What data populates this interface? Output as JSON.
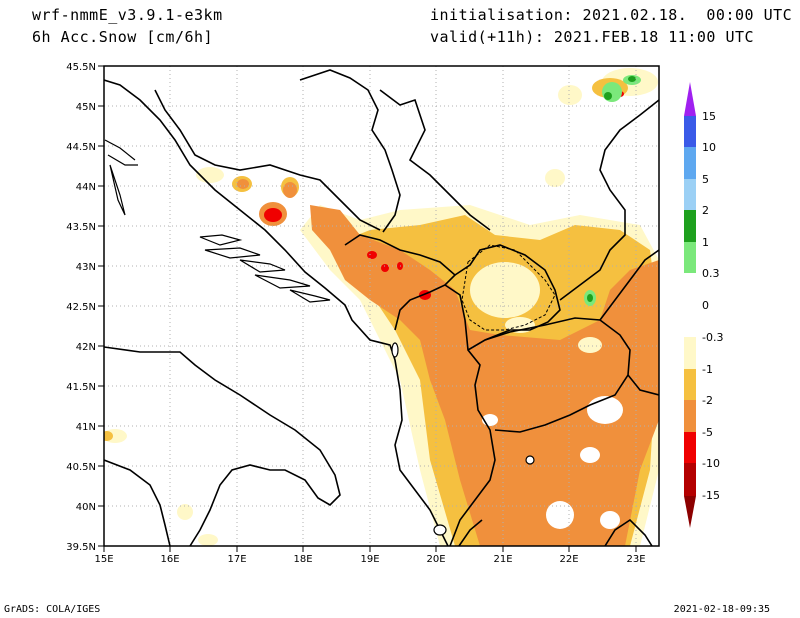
{
  "header": {
    "model": "wrf-nmmE_v3.9.1-e3km",
    "field": "6h Acc.Snow [cm/6h]",
    "init": "initialisation: 2021.02.18.  00:00 UTC",
    "valid": "valid(+11h): 2021.FEB.18 11:00 UTC"
  },
  "footer": {
    "credit": "GrADS: COLA/IGES",
    "timestamp": "2021-02-18-09:35"
  },
  "map": {
    "lat_labels": [
      "45.5N",
      "45N",
      "44.5N",
      "44N",
      "43.5N",
      "43N",
      "42.5N",
      "42N",
      "41.5N",
      "41N",
      "40.5N",
      "40N",
      "39.5N"
    ],
    "lon_labels": [
      "15E",
      "16E",
      "17E",
      "18E",
      "19E",
      "20E",
      "21E",
      "22E",
      "23E"
    ]
  },
  "legend": {
    "labels": [
      "15",
      "10",
      "5",
      "2",
      "1",
      "0.3",
      "0",
      "-0.3",
      "-1",
      "-2",
      "-5",
      "-10",
      "-15"
    ],
    "colors": [
      "#a020f0",
      "#3a5ae8",
      "#5ea8f0",
      "#9bd0f5",
      "#1ea01e",
      "#7be87b",
      "#ffffff",
      "#fff8c8",
      "#f5c040",
      "#f0903c",
      "#f00000",
      "#b40000",
      "#8c0000"
    ]
  },
  "colors": {
    "light_yellow": "#fff8c8",
    "yellow": "#f5c040",
    "orange": "#f0903c",
    "red": "#f00000",
    "dark_red": "#b40000",
    "green": "#1ea01e",
    "light_green": "#7be87b",
    "border": "#000000",
    "grid": "#b0b0b0"
  }
}
